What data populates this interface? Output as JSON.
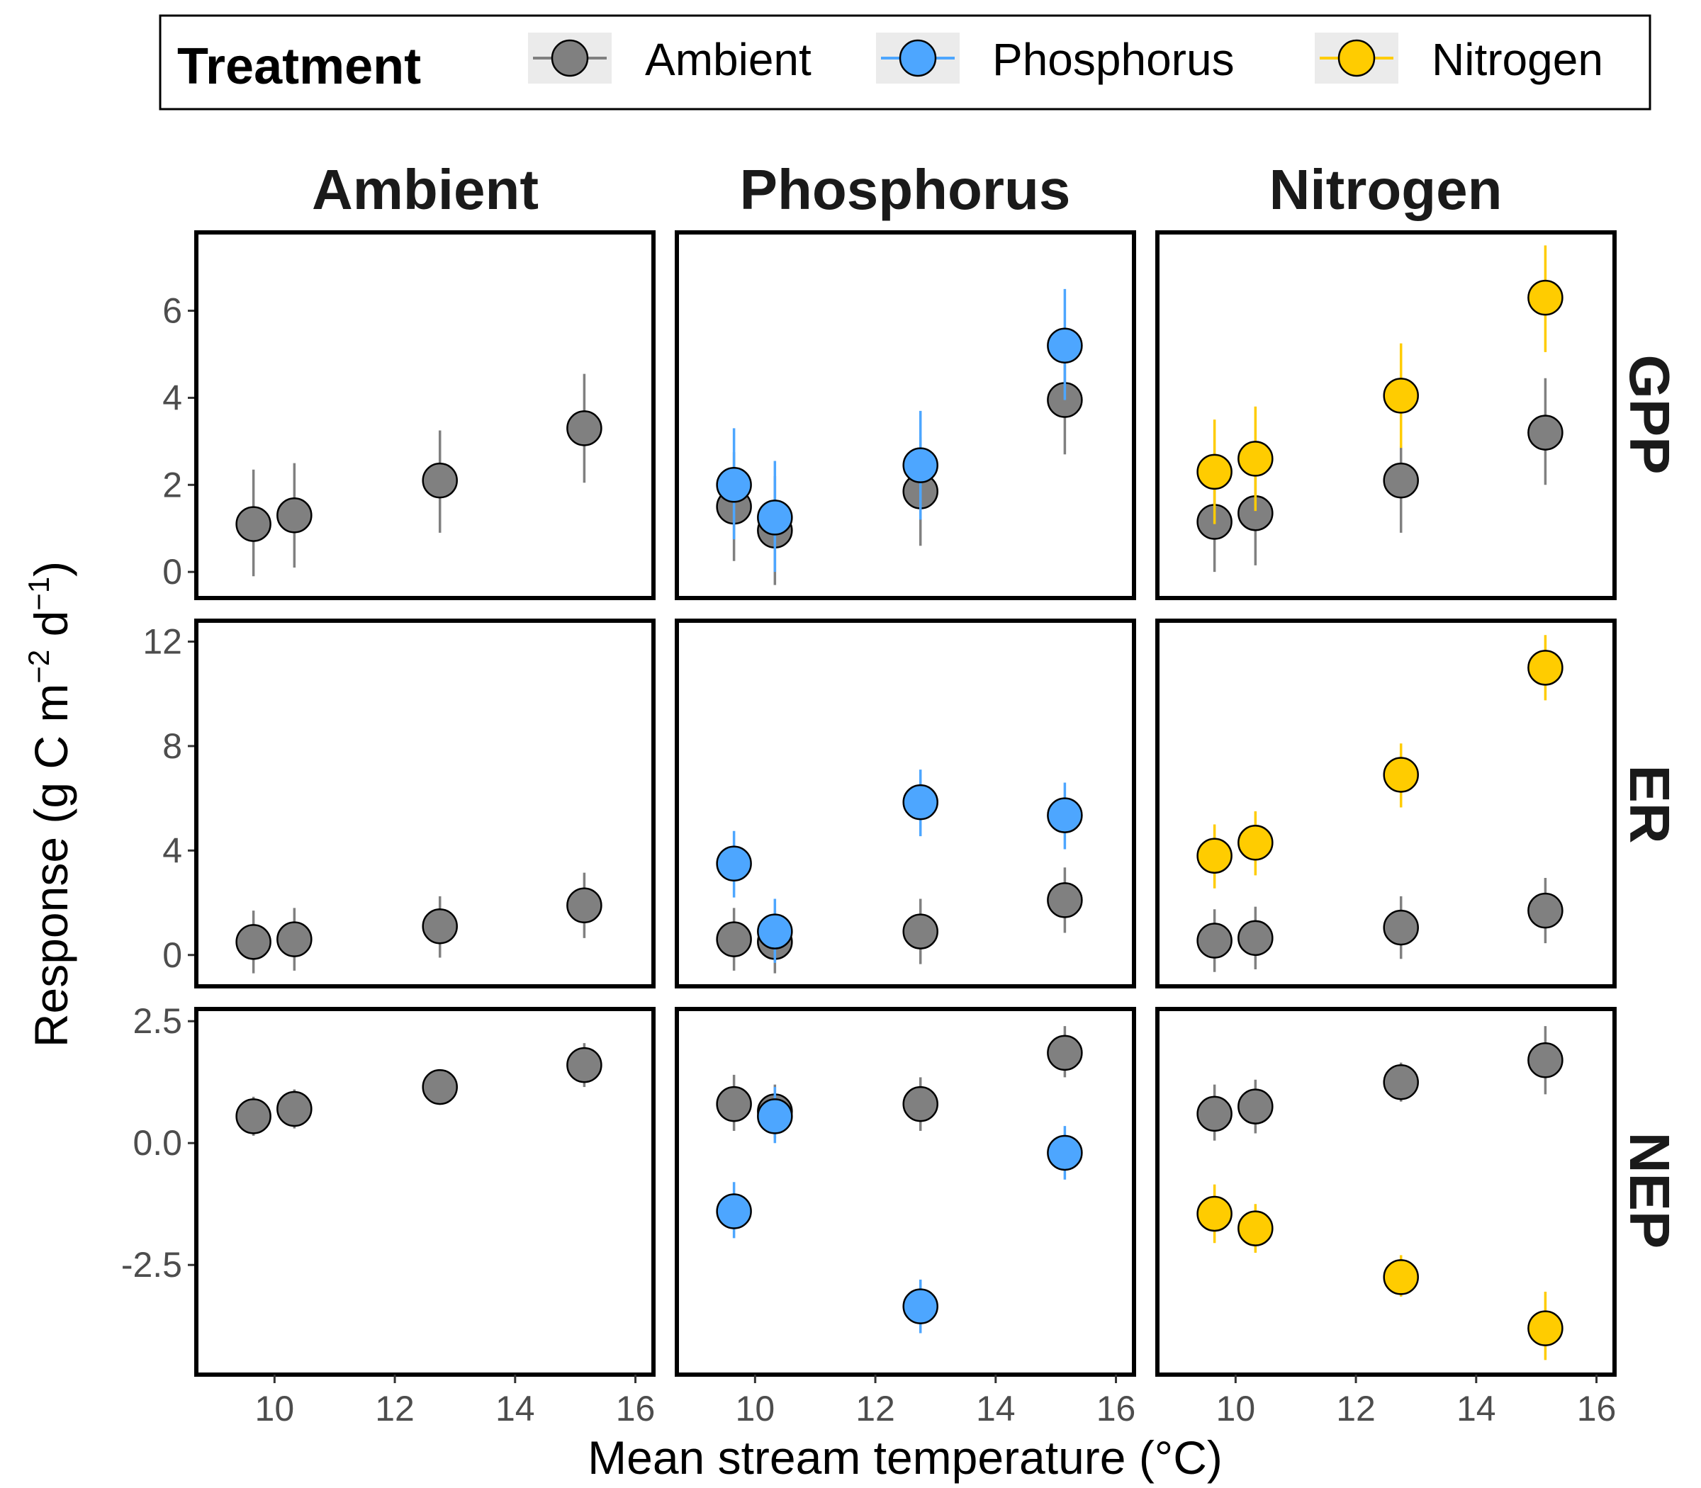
{
  "chart_data": {
    "type": "scatter",
    "subtype": "faceted point-range scatter",
    "legend": {
      "title": "Treatment",
      "position": "top",
      "entries": [
        {
          "label": "Ambient",
          "color": "#808080"
        },
        {
          "label": "Phosphorus",
          "color": "#4da6ff"
        },
        {
          "label": "Nitrogen",
          "color": "#ffcc00"
        }
      ]
    },
    "columns": [
      "Ambient",
      "Phosphorus",
      "Nitrogen"
    ],
    "rows": [
      "GPP",
      "ER",
      "NEP"
    ],
    "xlabel": "Mean stream temperature (°C)",
    "ylabel": "Response (g C m",
    "ylabel_sup1": "−2",
    "ylabel_mid": " d",
    "ylabel_sup2": "−1",
    "ylabel_end": ")",
    "x": [
      9.65,
      10.33,
      12.75,
      15.15
    ],
    "xlim": [
      8.7,
      16.3
    ],
    "xticks": [
      10,
      12,
      14,
      16
    ],
    "xtick_labels": [
      "10",
      "12",
      "14",
      "16"
    ],
    "grid": false,
    "panels": {
      "GPP": {
        "ylim": [
          -0.6,
          7.8
        ],
        "yticks": [
          0,
          2,
          4,
          6
        ],
        "ytick_labels": [
          "0",
          "2",
          "4",
          "6"
        ],
        "Ambient": {
          "y": [
            1.1,
            1.3,
            2.1,
            3.3
          ],
          "lo": [
            -0.1,
            0.1,
            0.9,
            2.05
          ],
          "hi": [
            2.35,
            2.5,
            3.25,
            4.55
          ]
        },
        "Phosphorus": {
          "Ambient": {
            "y": [
              1.5,
              0.95,
              1.85,
              3.95
            ],
            "lo": [
              0.25,
              -0.3,
              0.6,
              2.7
            ],
            "hi": [
              2.75,
              2.2,
              3.1,
              5.2
            ]
          },
          "Phosphorus": {
            "y": [
              2.0,
              1.25,
              2.45,
              5.2
            ],
            "lo": [
              0.75,
              0.0,
              1.2,
              3.95
            ],
            "hi": [
              3.3,
              2.55,
              3.7,
              6.5
            ]
          }
        },
        "Nitrogen": {
          "Ambient": {
            "y": [
              1.15,
              1.35,
              2.1,
              3.2
            ],
            "lo": [
              0.0,
              0.15,
              0.9,
              2.0
            ],
            "hi": [
              2.35,
              2.55,
              2.9,
              4.45
            ]
          },
          "Nitrogen": {
            "y": [
              2.3,
              2.6,
              4.05,
              6.3
            ],
            "lo": [
              1.1,
              1.4,
              2.85,
              5.05
            ],
            "hi": [
              3.5,
              3.8,
              5.25,
              7.5
            ]
          }
        }
      },
      "ER": {
        "ylim": [
          -1.2,
          12.8
        ],
        "yticks": [
          0,
          4,
          8,
          12
        ],
        "ytick_labels": [
          "0",
          "4",
          "8",
          "12"
        ],
        "Ambient": {
          "y": [
            0.5,
            0.6,
            1.1,
            1.9
          ],
          "lo": [
            -0.7,
            -0.6,
            -0.1,
            0.65
          ],
          "hi": [
            1.7,
            1.8,
            2.25,
            3.15
          ]
        },
        "Phosphorus": {
          "Ambient": {
            "y": [
              0.6,
              0.5,
              0.9,
              2.1
            ],
            "lo": [
              -0.6,
              -0.7,
              -0.35,
              0.85
            ],
            "hi": [
              1.8,
              1.7,
              2.15,
              3.35
            ]
          },
          "Phosphorus": {
            "y": [
              3.5,
              0.9,
              5.85,
              5.35
            ],
            "lo": [
              2.2,
              -0.3,
              4.55,
              4.05
            ],
            "hi": [
              4.75,
              2.15,
              7.1,
              6.6
            ]
          }
        },
        "Nitrogen": {
          "Ambient": {
            "y": [
              0.55,
              0.65,
              1.05,
              1.7
            ],
            "lo": [
              -0.65,
              -0.55,
              -0.15,
              0.45
            ],
            "hi": [
              1.75,
              1.85,
              2.25,
              2.95
            ]
          },
          "Nitrogen": {
            "y": [
              3.8,
              4.3,
              6.9,
              11.0
            ],
            "lo": [
              2.55,
              3.05,
              5.65,
              9.75
            ],
            "hi": [
              5.0,
              5.5,
              8.1,
              12.25
            ]
          }
        }
      },
      "NEP": {
        "ylim": [
          -4.75,
          2.75
        ],
        "yticks": [
          -2.5,
          0,
          2.5
        ],
        "ytick_labels": [
          "-2.5",
          "0.0",
          "2.5"
        ],
        "Ambient": {
          "y": [
            0.55,
            0.7,
            1.15,
            1.6
          ],
          "lo": [
            0.15,
            0.3,
            0.8,
            1.15
          ],
          "hi": [
            0.95,
            1.1,
            1.5,
            2.05
          ]
        },
        "Phosphorus": {
          "Ambient": {
            "y": [
              0.8,
              0.65,
              0.8,
              1.85
            ],
            "lo": [
              0.25,
              0.1,
              0.25,
              1.35
            ],
            "hi": [
              1.4,
              1.2,
              1.35,
              2.4
            ]
          },
          "Phosphorus": {
            "y": [
              -1.4,
              0.55,
              -3.35,
              -0.2
            ],
            "lo": [
              -1.95,
              0.0,
              -3.9,
              -0.75
            ],
            "hi": [
              -0.8,
              1.15,
              -2.8,
              0.35
            ]
          }
        },
        "Nitrogen": {
          "Ambient": {
            "y": [
              0.6,
              0.75,
              1.25,
              1.7
            ],
            "lo": [
              0.05,
              0.2,
              0.85,
              1.0
            ],
            "hi": [
              1.2,
              1.3,
              1.65,
              2.4
            ]
          },
          "Nitrogen": {
            "y": [
              -1.45,
              -1.75,
              -2.75,
              -3.8
            ],
            "lo": [
              -2.05,
              -2.25,
              -3.15,
              -4.45
            ],
            "hi": [
              -0.85,
              -1.25,
              -2.3,
              -3.05
            ]
          }
        }
      }
    }
  }
}
